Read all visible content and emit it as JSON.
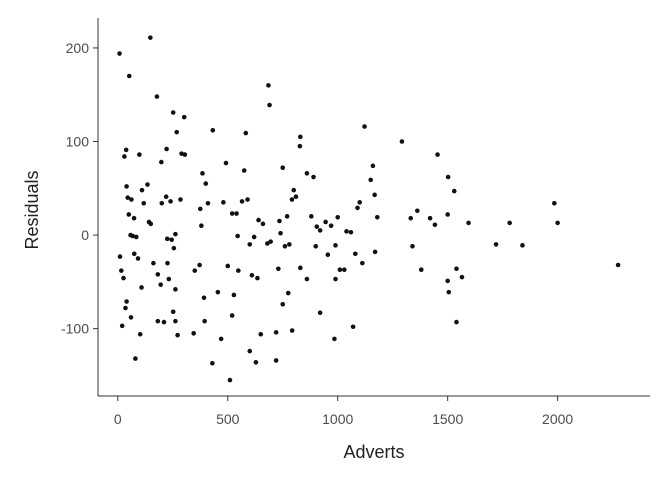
{
  "chart_data": {
    "type": "scatter",
    "title": "",
    "xlabel": "Adverts",
    "ylabel": "Residuals",
    "xlim": [
      -90,
      2420
    ],
    "ylim": [
      -172,
      232
    ],
    "xticks": [
      0,
      500,
      1000,
      1500,
      2000
    ],
    "yticks": [
      -100,
      0,
      100,
      200
    ],
    "xtick_labels": [
      "0",
      "500",
      "1000",
      "1500",
      "2000"
    ],
    "ytick_labels": [
      "-100",
      "0",
      "100",
      "200"
    ],
    "grid": false,
    "legend": "none",
    "point_color": "#111111",
    "points": [
      [
        8,
        194
      ],
      [
        148,
        211
      ],
      [
        52,
        170
      ],
      [
        178,
        148
      ],
      [
        685,
        160
      ],
      [
        690,
        139
      ],
      [
        252,
        131
      ],
      [
        302,
        126
      ],
      [
        1122,
        116
      ],
      [
        268,
        110
      ],
      [
        432,
        112
      ],
      [
        582,
        109
      ],
      [
        830,
        105
      ],
      [
        828,
        95
      ],
      [
        1292,
        100
      ],
      [
        1454,
        86
      ],
      [
        38,
        91
      ],
      [
        30,
        84
      ],
      [
        98,
        86
      ],
      [
        290,
        87
      ],
      [
        305,
        86
      ],
      [
        222,
        92
      ],
      [
        575,
        69
      ],
      [
        198,
        78
      ],
      [
        385,
        66
      ],
      [
        492,
        77
      ],
      [
        400,
        55
      ],
      [
        750,
        72
      ],
      [
        800,
        48
      ],
      [
        860,
        66
      ],
      [
        890,
        62
      ],
      [
        1160,
        74
      ],
      [
        1150,
        59
      ],
      [
        1362,
        26
      ],
      [
        1502,
        62
      ],
      [
        1530,
        47
      ],
      [
        40,
        52
      ],
      [
        45,
        40
      ],
      [
        62,
        38
      ],
      [
        110,
        48
      ],
      [
        135,
        54
      ],
      [
        220,
        41
      ],
      [
        240,
        36
      ],
      [
        200,
        34
      ],
      [
        285,
        38
      ],
      [
        375,
        28
      ],
      [
        380,
        10
      ],
      [
        410,
        34
      ],
      [
        480,
        35
      ],
      [
        520,
        23
      ],
      [
        540,
        23
      ],
      [
        565,
        36
      ],
      [
        590,
        38
      ],
      [
        640,
        16
      ],
      [
        660,
        12
      ],
      [
        735,
        15
      ],
      [
        770,
        20
      ],
      [
        792,
        38
      ],
      [
        810,
        41
      ],
      [
        880,
        20
      ],
      [
        905,
        9
      ],
      [
        920,
        5
      ],
      [
        945,
        14
      ],
      [
        970,
        10
      ],
      [
        1000,
        19
      ],
      [
        1040,
        4
      ],
      [
        1060,
        3
      ],
      [
        1100,
        35
      ],
      [
        1090,
        29
      ],
      [
        1168,
        43
      ],
      [
        1180,
        19
      ],
      [
        1332,
        18
      ],
      [
        1420,
        18
      ],
      [
        1442,
        11
      ],
      [
        1500,
        22
      ],
      [
        1595,
        13
      ],
      [
        1782,
        13
      ],
      [
        1985,
        34
      ],
      [
        2000,
        13
      ],
      [
        50,
        22
      ],
      [
        58,
        0
      ],
      [
        68,
        -1
      ],
      [
        84,
        -2
      ],
      [
        74,
        18
      ],
      [
        118,
        34
      ],
      [
        142,
        14
      ],
      [
        150,
        12
      ],
      [
        225,
        -4
      ],
      [
        255,
        -14
      ],
      [
        262,
        1
      ],
      [
        245,
        -5
      ],
      [
        545,
        -1
      ],
      [
        600,
        -10
      ],
      [
        620,
        -2
      ],
      [
        680,
        -9
      ],
      [
        695,
        -7
      ],
      [
        740,
        2
      ],
      [
        760,
        -12
      ],
      [
        780,
        -10
      ],
      [
        900,
        -12
      ],
      [
        955,
        -21
      ],
      [
        990,
        -11
      ],
      [
        1030,
        -37
      ],
      [
        1080,
        -20
      ],
      [
        1112,
        -30
      ],
      [
        1170,
        -18
      ],
      [
        1340,
        -12
      ],
      [
        1380,
        -37
      ],
      [
        1540,
        -36
      ],
      [
        1565,
        -45
      ],
      [
        1720,
        -10
      ],
      [
        1840,
        -11
      ],
      [
        2275,
        -32
      ],
      [
        10,
        -23
      ],
      [
        16,
        -38
      ],
      [
        26,
        -46
      ],
      [
        40,
        -71
      ],
      [
        75,
        -20
      ],
      [
        92,
        -25
      ],
      [
        108,
        -56
      ],
      [
        162,
        -30
      ],
      [
        182,
        -42
      ],
      [
        195,
        -53
      ],
      [
        226,
        -30
      ],
      [
        232,
        -47
      ],
      [
        252,
        -82
      ],
      [
        262,
        -58
      ],
      [
        350,
        -38
      ],
      [
        372,
        -32
      ],
      [
        392,
        -67
      ],
      [
        455,
        -61
      ],
      [
        500,
        -33
      ],
      [
        528,
        -64
      ],
      [
        548,
        -38
      ],
      [
        610,
        -43
      ],
      [
        635,
        -46
      ],
      [
        730,
        -36
      ],
      [
        750,
        -74
      ],
      [
        775,
        -62
      ],
      [
        830,
        -35
      ],
      [
        860,
        -47
      ],
      [
        920,
        -83
      ],
      [
        990,
        -47
      ],
      [
        1010,
        -37
      ],
      [
        1070,
        -98
      ],
      [
        1500,
        -49
      ],
      [
        1505,
        -61
      ],
      [
        1540,
        -93
      ],
      [
        20,
        -97
      ],
      [
        35,
        -78
      ],
      [
        60,
        -88
      ],
      [
        80,
        -132
      ],
      [
        102,
        -106
      ],
      [
        182,
        -92
      ],
      [
        210,
        -93
      ],
      [
        262,
        -92
      ],
      [
        272,
        -107
      ],
      [
        345,
        -105
      ],
      [
        395,
        -92
      ],
      [
        430,
        -137
      ],
      [
        470,
        -111
      ],
      [
        510,
        -155
      ],
      [
        520,
        -86
      ],
      [
        600,
        -124
      ],
      [
        628,
        -136
      ],
      [
        650,
        -106
      ],
      [
        720,
        -104
      ],
      [
        720,
        -134
      ],
      [
        793,
        -102
      ],
      [
        985,
        -111
      ]
    ]
  }
}
